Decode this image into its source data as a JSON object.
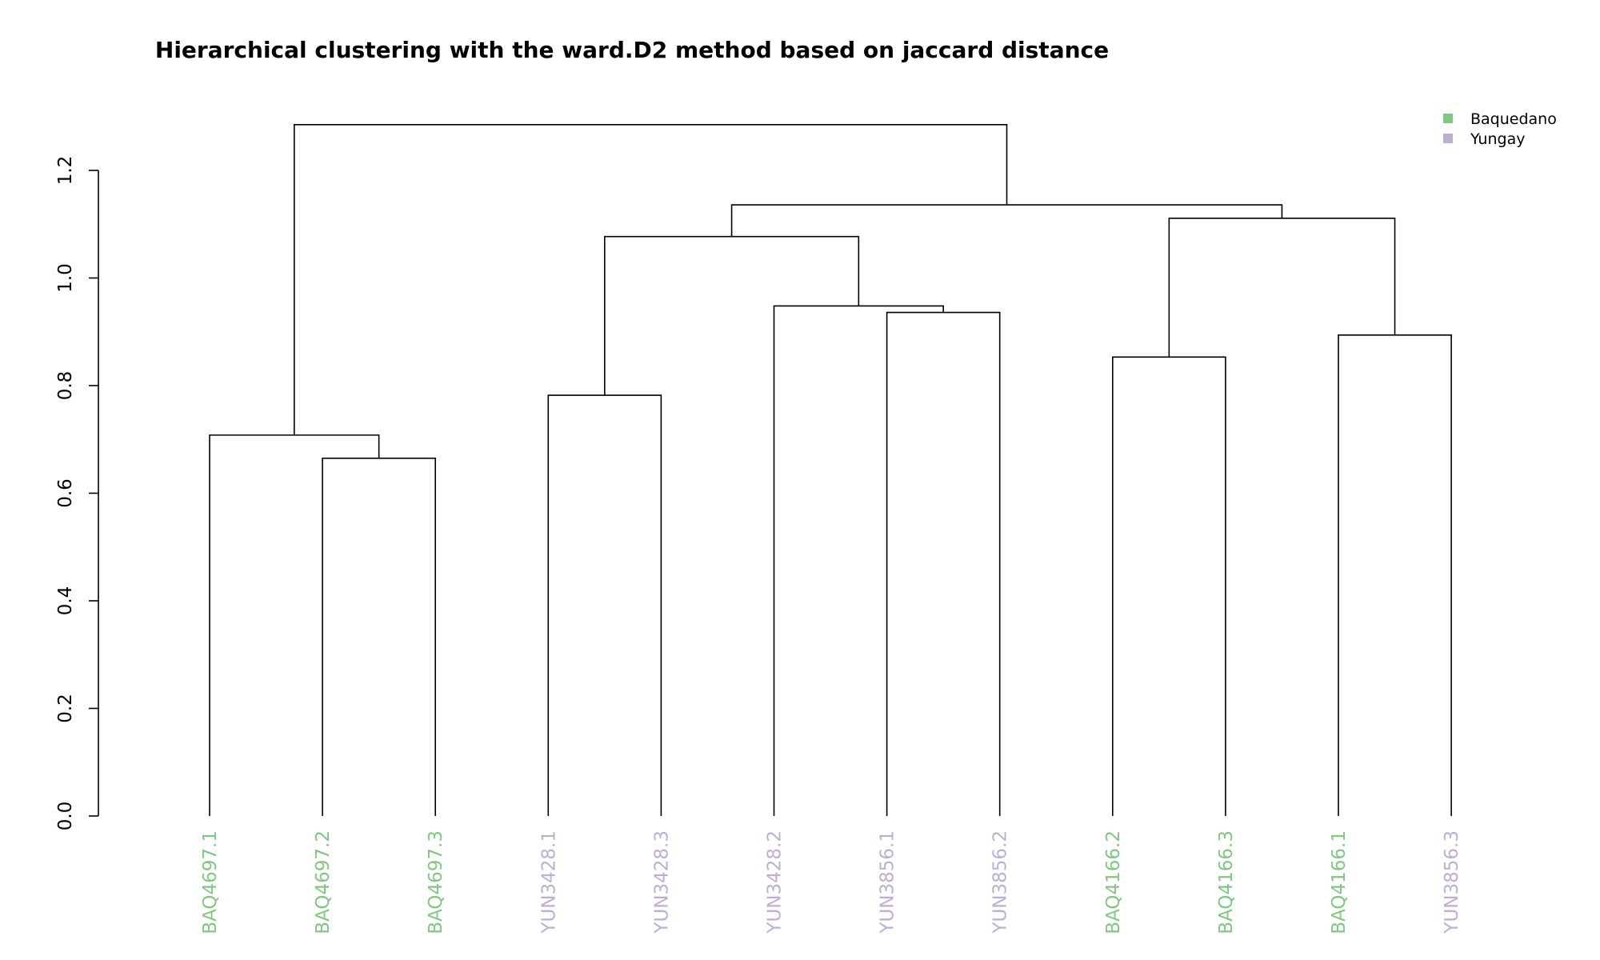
{
  "chart_data": {
    "type": "dendrogram",
    "title": "Hierarchical clustering with the ward.D2 method based on jaccard distance",
    "ylim": [
      0,
      1.2
    ],
    "yticks": [
      0.0,
      0.2,
      0.4,
      0.6,
      0.8,
      1.0,
      1.2
    ],
    "ytick_labels": [
      "0.0",
      "0.2",
      "0.4",
      "0.6",
      "0.8",
      "1.0",
      "1.2"
    ],
    "leaves": [
      {
        "label": "BAQ4697.1",
        "group": "Baquedano"
      },
      {
        "label": "BAQ4697.2",
        "group": "Baquedano"
      },
      {
        "label": "BAQ4697.3",
        "group": "Baquedano"
      },
      {
        "label": "YUN3428.1",
        "group": "Yungay"
      },
      {
        "label": "YUN3428.3",
        "group": "Yungay"
      },
      {
        "label": "YUN3428.2",
        "group": "Yungay"
      },
      {
        "label": "YUN3856.1",
        "group": "Yungay"
      },
      {
        "label": "YUN3856.2",
        "group": "Yungay"
      },
      {
        "label": "BAQ4166.2",
        "group": "Baquedano"
      },
      {
        "label": "BAQ4166.3",
        "group": "Baquedano"
      },
      {
        "label": "BAQ4166.1",
        "group": "Baquedano"
      },
      {
        "label": "YUN3856.3",
        "group": "Yungay"
      }
    ],
    "merges": [
      {
        "left": -2,
        "right": -3,
        "height": 0.665
      },
      {
        "left": -1,
        "right": 1,
        "height": 0.708
      },
      {
        "left": -4,
        "right": -5,
        "height": 0.782
      },
      {
        "left": -9,
        "right": -10,
        "height": 0.853
      },
      {
        "left": -11,
        "right": -12,
        "height": 0.894
      },
      {
        "left": -7,
        "right": -8,
        "height": 0.936
      },
      {
        "left": -6,
        "right": 6,
        "height": 0.948
      },
      {
        "left": 3,
        "right": 7,
        "height": 1.077
      },
      {
        "left": 4,
        "right": 5,
        "height": 1.111
      },
      {
        "left": 8,
        "right": 9,
        "height": 1.136
      },
      {
        "left": 2,
        "right": 10,
        "height": 1.285
      }
    ],
    "legend": {
      "position": "top-right",
      "items": [
        {
          "label": "Baquedano",
          "color": "#7fc97f"
        },
        {
          "label": "Yungay",
          "color": "#beaed4"
        }
      ]
    },
    "colors": {
      "Baquedano": "#7fc97f",
      "Yungay": "#beaed4",
      "branch": "#000000"
    }
  }
}
